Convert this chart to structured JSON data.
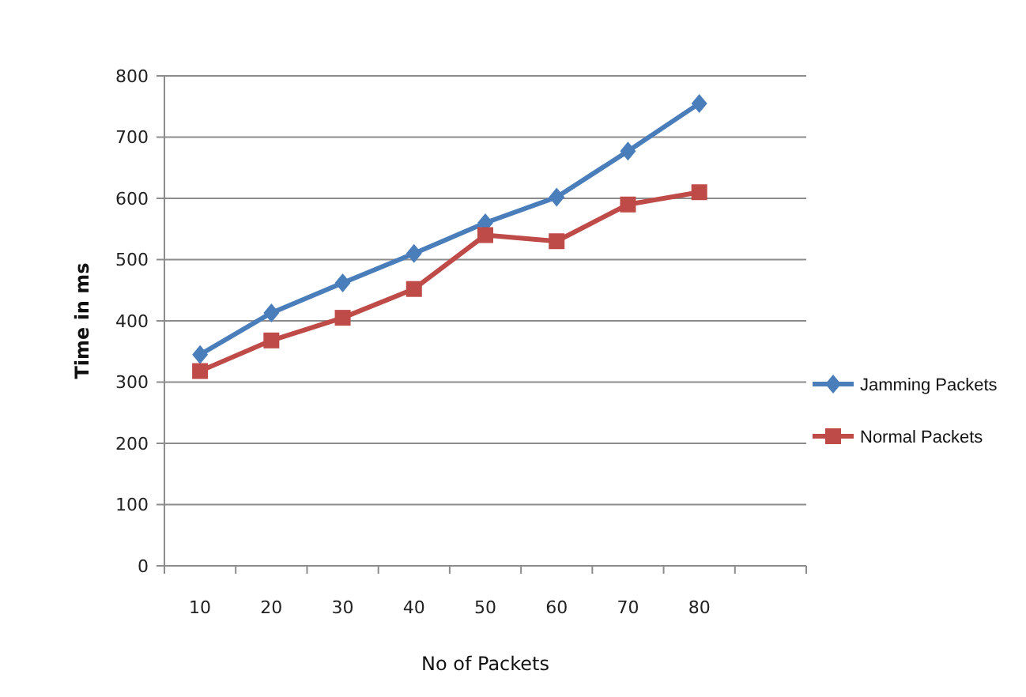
{
  "chart_data": {
    "type": "line",
    "xlabel": "No of Packets",
    "ylabel": "Time in ms",
    "categories": [
      "10",
      "20",
      "30",
      "40",
      "50",
      "60",
      "70",
      "80",
      null
    ],
    "series": [
      {
        "name": "Jamming Packets",
        "color": "#4a7ebb",
        "marker": "diamond",
        "values": [
          345,
          413,
          462,
          510,
          560,
          602,
          677,
          755,
          null
        ]
      },
      {
        "name": "Normal Packets",
        "color": "#be4b48",
        "marker": "square",
        "values": [
          318,
          368,
          405,
          452,
          540,
          530,
          590,
          610,
          null
        ]
      }
    ],
    "ylim": [
      0,
      800
    ],
    "yticks": [
      0,
      100,
      200,
      300,
      400,
      500,
      600,
      700,
      800
    ],
    "grid": "y",
    "legend": "right",
    "line_style": "solid"
  }
}
